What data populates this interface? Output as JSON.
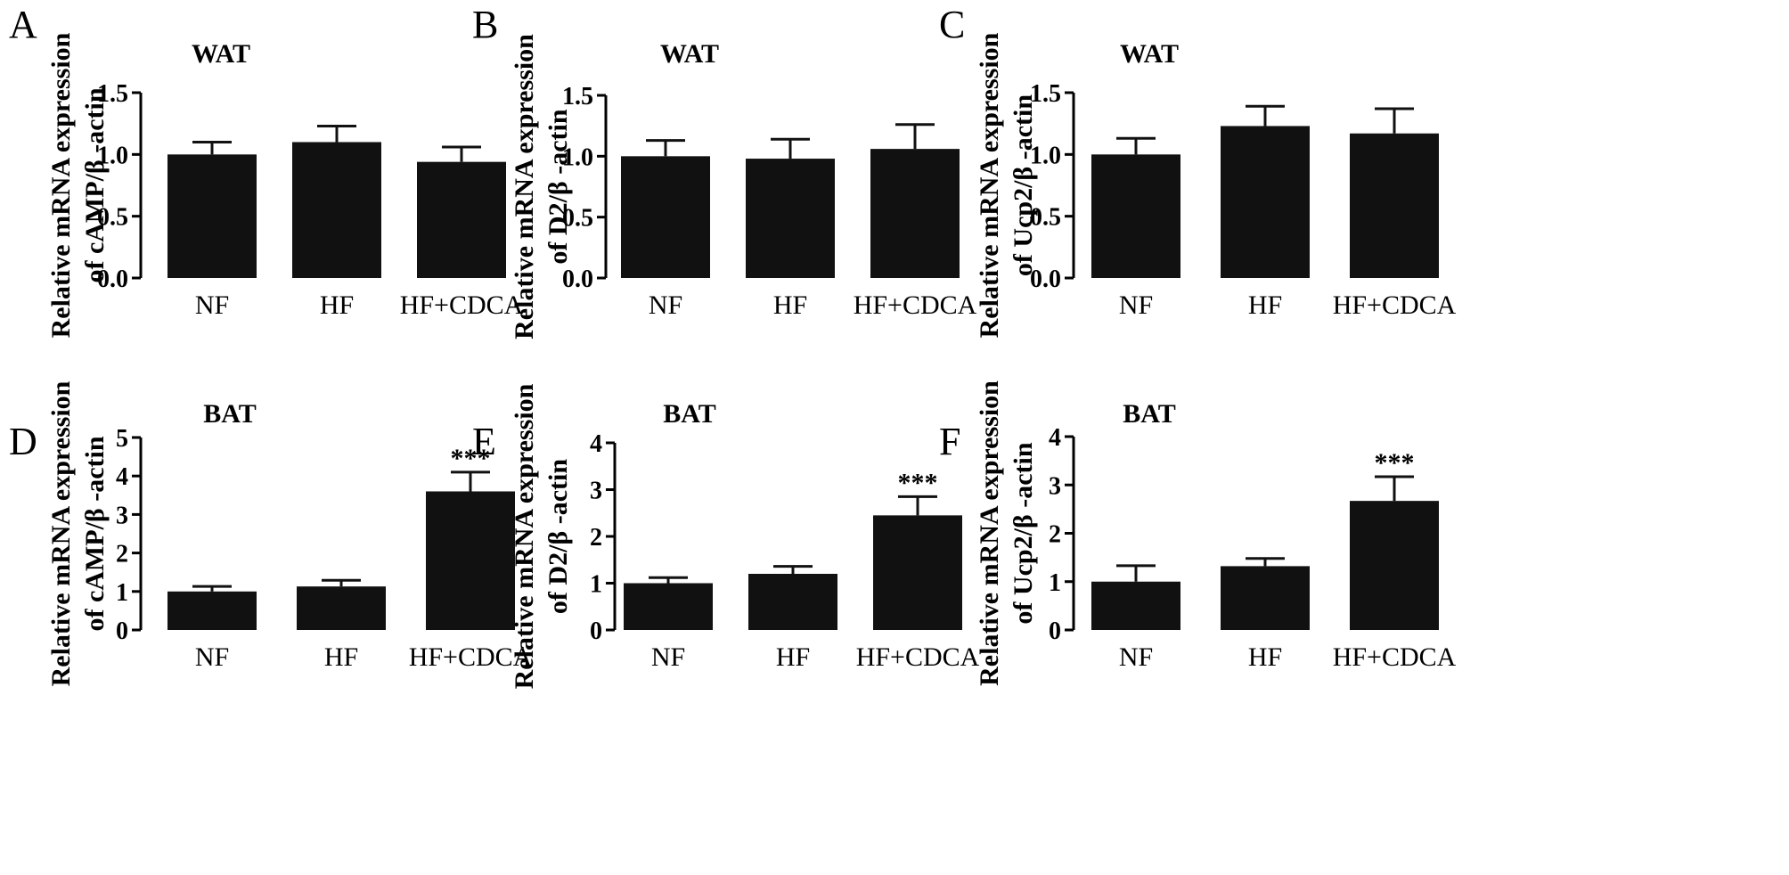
{
  "chart_data": [
    {
      "panel": "A",
      "type": "bar",
      "title": "WAT",
      "ylabel_lines": [
        "Relative mRNA expression",
        "of cAMP/β -actin"
      ],
      "categories": [
        "NF",
        "HF",
        "HF+CDCA"
      ],
      "values": [
        1.0,
        1.1,
        0.94
      ],
      "errors": [
        0.1,
        0.13,
        0.12
      ],
      "significance": [
        "",
        "",
        ""
      ],
      "ylim": [
        0,
        1.5
      ],
      "yticks": [
        "0.0",
        "0.5",
        "1.0",
        "1.5"
      ]
    },
    {
      "panel": "B",
      "type": "bar",
      "title": "WAT",
      "ylabel_lines": [
        "Relative mRNA expression",
        "of D2/β -actin"
      ],
      "categories": [
        "NF",
        "HF",
        "HF+CDCA"
      ],
      "values": [
        1.0,
        0.98,
        1.06
      ],
      "errors": [
        0.13,
        0.16,
        0.2
      ],
      "significance": [
        "",
        "",
        ""
      ],
      "ylim": [
        0,
        1.5
      ],
      "yticks": [
        "0.0",
        "0.5",
        "1.0",
        "1.5"
      ]
    },
    {
      "panel": "C",
      "type": "bar",
      "title": "WAT",
      "ylabel_lines": [
        "Relative mRNA expression",
        "of Ucp2/β -actin"
      ],
      "categories": [
        "NF",
        "HF",
        "HF+CDCA"
      ],
      "values": [
        1.0,
        1.23,
        1.17
      ],
      "errors": [
        0.13,
        0.16,
        0.2
      ],
      "significance": [
        "",
        "",
        ""
      ],
      "ylim": [
        0,
        1.5
      ],
      "yticks": [
        "0.0",
        "0.5",
        "1.0",
        "1.5"
      ]
    },
    {
      "panel": "D",
      "type": "bar",
      "title": "BAT",
      "ylabel_lines": [
        "Relative mRNA expression",
        "of cAMP/β -actin"
      ],
      "categories": [
        "NF",
        "HF",
        "HF+CDCA"
      ],
      "values": [
        1.0,
        1.13,
        3.6
      ],
      "errors": [
        0.13,
        0.16,
        0.5
      ],
      "significance": [
        "",
        "",
        "***"
      ],
      "ylim": [
        0,
        5
      ],
      "yticks": [
        "0",
        "1",
        "2",
        "3",
        "4",
        "5"
      ]
    },
    {
      "panel": "E",
      "type": "bar",
      "title": "BAT",
      "ylabel_lines": [
        "Relative mRNA expression",
        "of D2/β -actin"
      ],
      "categories": [
        "NF",
        "HF",
        "HF+CDCA"
      ],
      "values": [
        1.0,
        1.2,
        2.45
      ],
      "errors": [
        0.12,
        0.16,
        0.4
      ],
      "significance": [
        "",
        "",
        "***"
      ],
      "ylim": [
        0,
        4
      ],
      "yticks": [
        "0",
        "1",
        "2",
        "3",
        "4"
      ]
    },
    {
      "panel": "F",
      "type": "bar",
      "title": "BAT",
      "ylabel_lines": [
        "Relative mRNA expression",
        "of Ucp2/β -actin"
      ],
      "categories": [
        "NF",
        "HF",
        "HF+CDCA"
      ],
      "values": [
        1.0,
        1.32,
        2.67
      ],
      "errors": [
        0.33,
        0.16,
        0.5
      ],
      "significance": [
        "",
        "",
        "***"
      ],
      "ylim": [
        0,
        4
      ],
      "yticks": [
        "0",
        "1",
        "2",
        "3",
        "4"
      ]
    }
  ],
  "colors": {
    "bar": "#111111",
    "axis": "#000000",
    "background": "#ffffff"
  }
}
